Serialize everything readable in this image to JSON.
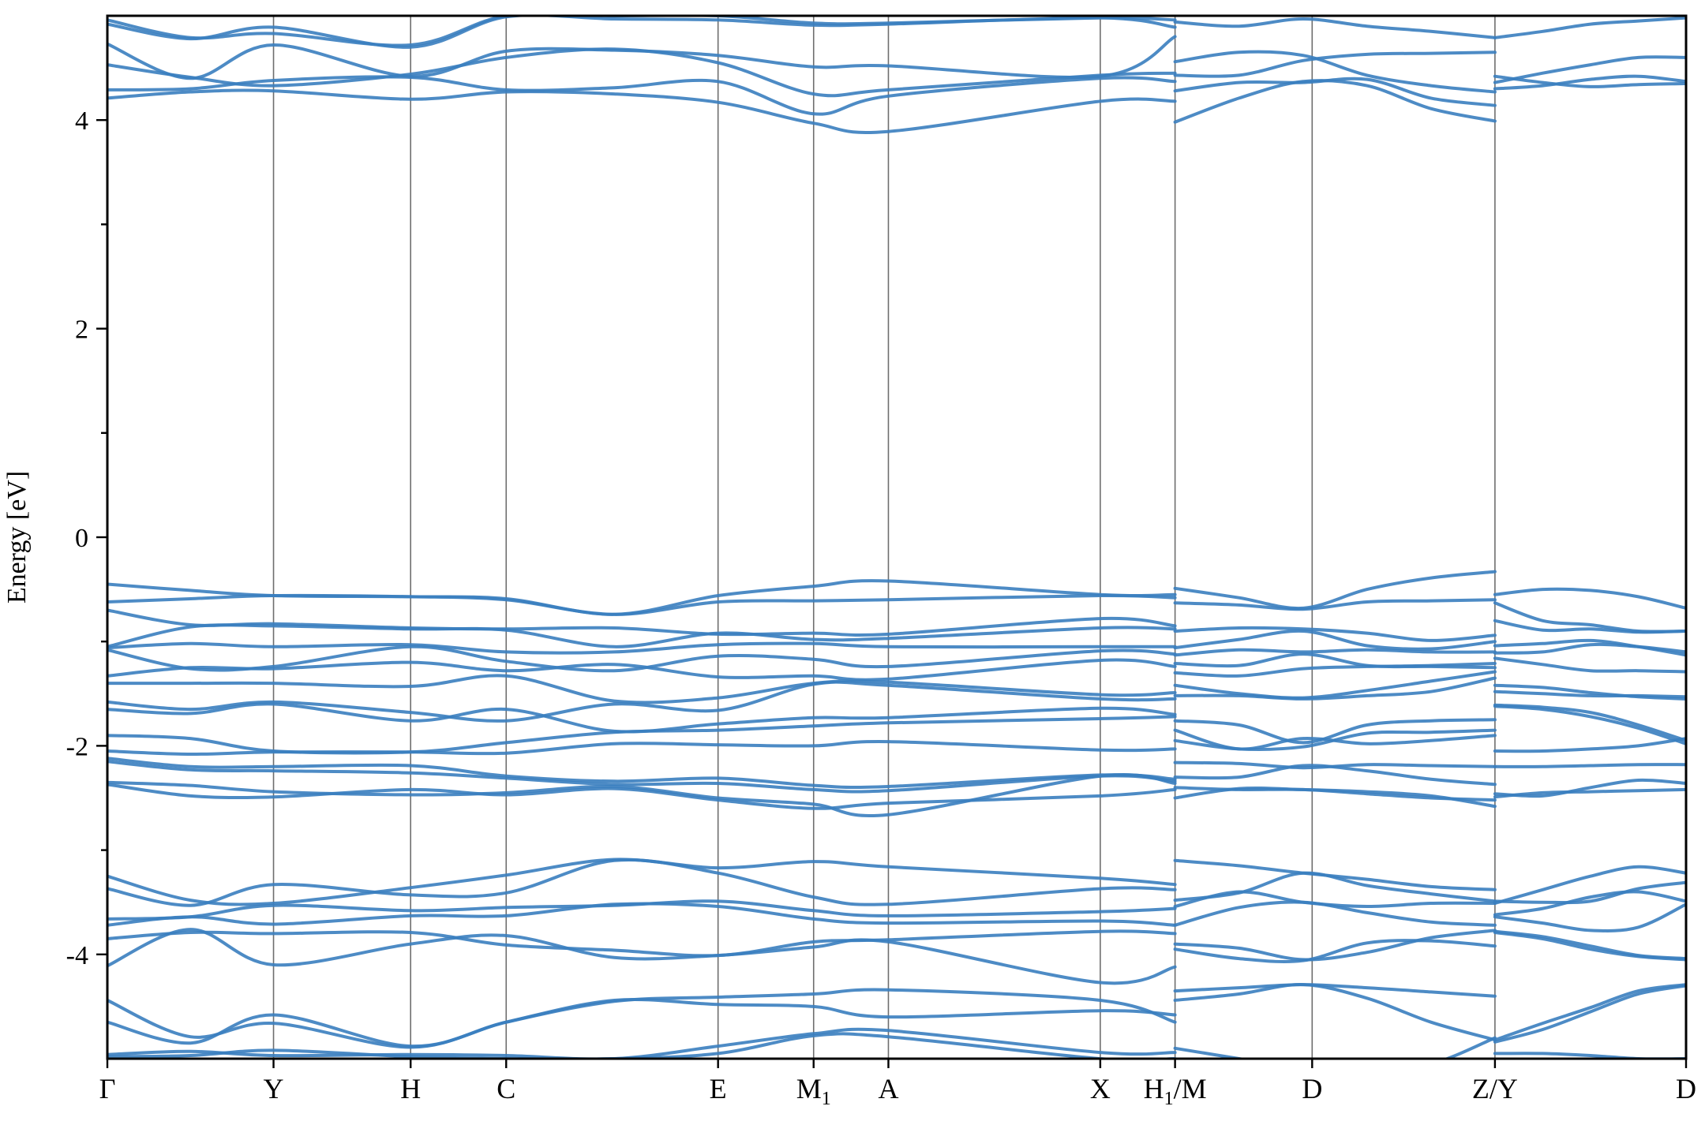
{
  "chart_data": {
    "type": "line",
    "title": "",
    "xlabel": "",
    "ylabel": "Energy [eV]",
    "ylim": [
      -5.0,
      5.0
    ],
    "ytick_values": [
      -4,
      -2,
      0,
      2,
      4
    ],
    "ytick_labels": [
      "-4",
      "-2",
      "0",
      "2",
      "4"
    ],
    "yminor_ticks": [
      -3,
      -1,
      1,
      3
    ],
    "grid": false,
    "legend": "none",
    "line_color": "#3a7ebf",
    "kpath_span": [
      0,
      19
    ],
    "kpoints": [
      {
        "label": "Γ",
        "sub": "",
        "suffix": "",
        "x": 0.0
      },
      {
        "label": "Y",
        "sub": "",
        "suffix": "",
        "x": 2.0
      },
      {
        "label": "H",
        "sub": "",
        "suffix": "",
        "x": 3.65
      },
      {
        "label": "C",
        "sub": "",
        "suffix": "",
        "x": 4.8
      },
      {
        "label": "E",
        "sub": "",
        "suffix": "",
        "x": 7.35
      },
      {
        "label": "M",
        "sub": "1",
        "suffix": "",
        "x": 8.5
      },
      {
        "label": "A",
        "sub": "",
        "suffix": "",
        "x": 9.4
      },
      {
        "label": "X",
        "sub": "",
        "suffix": "",
        "x": 11.95
      },
      {
        "label": "H",
        "sub": "1",
        "suffix": "/M",
        "x": 12.85
      },
      {
        "label": "D",
        "sub": "",
        "suffix": "",
        "x": 14.5
      },
      {
        "label": "Z/Y",
        "sub": "",
        "suffix": "",
        "x": 16.7
      },
      {
        "label": "D",
        "sub": "",
        "suffix": "",
        "x": 19.0
      }
    ],
    "segments_note_points": [
      0,
      2.0,
      3.65,
      4.8,
      7.35,
      8.5,
      9.4,
      11.95,
      12.85
    ],
    "series": [
      {
        "segment": 0,
        "values": [
          4.21,
          4.27,
          4.28,
          4.2,
          4.27,
          4.25,
          4.17,
          3.97,
          3.89,
          4.18,
          4.18
        ]
      },
      {
        "segment": 0,
        "values": [
          4.29,
          4.3,
          4.38,
          4.41,
          4.29,
          4.31,
          4.37,
          4.06,
          4.23,
          4.4,
          4.37
        ]
      },
      {
        "segment": 0,
        "values": [
          4.53,
          4.41,
          4.33,
          4.44,
          4.6,
          4.68,
          4.55,
          4.25,
          4.29,
          4.43,
          4.45
        ]
      },
      {
        "segment": 0,
        "values": [
          4.73,
          4.4,
          4.72,
          4.42,
          4.66,
          4.67,
          4.62,
          4.51,
          4.52,
          4.42,
          4.8
        ]
      },
      {
        "segment": 0,
        "values": [
          4.92,
          4.78,
          4.89,
          4.7,
          4.99,
          4.97,
          4.96,
          4.91,
          4.92,
          4.98,
          4.89
        ]
      },
      {
        "segment": 0,
        "values": [
          4.96,
          4.79,
          4.83,
          4.72,
          5.0,
          5.0,
          5.0,
          4.93,
          4.93,
          4.98,
          4.96
        ]
      },
      {
        "segment": 0,
        "values": [
          -0.45,
          -0.51,
          -0.56,
          -0.57,
          -0.59,
          -0.74,
          -0.56,
          -0.47,
          -0.42,
          -0.55,
          -0.55
        ]
      },
      {
        "segment": 0,
        "values": [
          -0.62,
          -0.59,
          -0.56,
          -0.57,
          -0.6,
          -0.74,
          -0.62,
          -0.61,
          -0.6,
          -0.56,
          -0.58
        ]
      },
      {
        "segment": 0,
        "values": [
          -0.7,
          -0.84,
          -0.83,
          -0.87,
          -0.88,
          -0.87,
          -0.93,
          -0.92,
          -0.93,
          -0.78,
          -0.85
        ]
      },
      {
        "segment": 0,
        "values": [
          -1.05,
          -0.86,
          -0.85,
          -0.88,
          -0.89,
          -1.05,
          -0.92,
          -0.98,
          -0.97,
          -0.87,
          -0.88
        ]
      },
      {
        "segment": 0,
        "values": [
          -1.06,
          -1.02,
          -1.05,
          -1.03,
          -1.1,
          -1.1,
          -1.03,
          -1.02,
          -1.05,
          -1.05,
          -1.05
        ]
      },
      {
        "segment": 0,
        "values": [
          -1.08,
          -1.26,
          -1.24,
          -1.05,
          -1.19,
          -1.28,
          -1.14,
          -1.17,
          -1.24,
          -1.09,
          -1.12
        ]
      },
      {
        "segment": 0,
        "values": [
          -1.33,
          -1.25,
          -1.26,
          -1.2,
          -1.28,
          -1.22,
          -1.34,
          -1.33,
          -1.36,
          -1.18,
          -1.24
        ]
      },
      {
        "segment": 0,
        "values": [
          -1.4,
          -1.4,
          -1.4,
          -1.43,
          -1.33,
          -1.57,
          -1.54,
          -1.4,
          -1.39,
          -1.51,
          -1.49
        ]
      },
      {
        "segment": 0,
        "values": [
          -1.58,
          -1.65,
          -1.58,
          -1.68,
          -1.76,
          -1.6,
          -1.66,
          -1.41,
          -1.42,
          -1.55,
          -1.55
        ]
      },
      {
        "segment": 0,
        "values": [
          -1.65,
          -1.69,
          -1.6,
          -1.76,
          -1.65,
          -1.86,
          -1.79,
          -1.73,
          -1.73,
          -1.64,
          -1.7
        ]
      },
      {
        "segment": 0,
        "values": [
          -1.9,
          -1.93,
          -2.05,
          -2.06,
          -1.97,
          -1.87,
          -1.85,
          -1.81,
          -1.78,
          -1.74,
          -1.72
        ]
      },
      {
        "segment": 0,
        "values": [
          -2.05,
          -2.08,
          -2.06,
          -2.06,
          -2.07,
          -1.98,
          -1.99,
          -2.0,
          -1.96,
          -2.04,
          -2.03
        ]
      },
      {
        "segment": 0,
        "values": [
          -2.12,
          -2.2,
          -2.2,
          -2.19,
          -2.29,
          -2.34,
          -2.31,
          -2.38,
          -2.39,
          -2.28,
          -2.32
        ]
      },
      {
        "segment": 0,
        "values": [
          -2.15,
          -2.23,
          -2.24,
          -2.26,
          -2.31,
          -2.37,
          -2.36,
          -2.42,
          -2.43,
          -2.29,
          -2.34
        ]
      },
      {
        "segment": 0,
        "values": [
          -2.35,
          -2.38,
          -2.44,
          -2.47,
          -2.45,
          -2.39,
          -2.5,
          -2.56,
          -2.66,
          -2.29,
          -2.36
        ]
      },
      {
        "segment": 0,
        "values": [
          -2.37,
          -2.48,
          -2.49,
          -2.42,
          -2.47,
          -2.41,
          -2.52,
          -2.6,
          -2.55,
          -2.48,
          -2.42
        ]
      },
      {
        "segment": 0,
        "values": [
          -3.25,
          -3.48,
          -3.51,
          -3.36,
          -3.24,
          -3.09,
          -3.17,
          -3.11,
          -3.16,
          -3.27,
          -3.33
        ]
      },
      {
        "segment": 0,
        "values": [
          -3.37,
          -3.53,
          -3.33,
          -3.43,
          -3.41,
          -3.1,
          -3.22,
          -3.45,
          -3.52,
          -3.37,
          -3.38
        ]
      },
      {
        "segment": 0,
        "values": [
          -3.66,
          -3.64,
          -3.53,
          -3.58,
          -3.55,
          -3.53,
          -3.49,
          -3.58,
          -3.63,
          -3.59,
          -3.56
        ]
      },
      {
        "segment": 0,
        "values": [
          -3.72,
          -3.64,
          -3.71,
          -3.63,
          -3.63,
          -3.52,
          -3.54,
          -3.66,
          -3.7,
          -3.68,
          -3.72
        ]
      },
      {
        "segment": 0,
        "values": [
          -3.85,
          -3.79,
          -3.8,
          -3.79,
          -3.91,
          -3.96,
          -4.01,
          -3.88,
          -3.86,
          -3.78,
          -3.8
        ]
      },
      {
        "segment": 0,
        "values": [
          -4.11,
          -3.76,
          -4.1,
          -3.9,
          -3.82,
          -4.03,
          -4.01,
          -3.93,
          -3.88,
          -4.27,
          -4.12
        ]
      },
      {
        "segment": 0,
        "values": [
          -4.44,
          -4.79,
          -4.66,
          -4.89,
          -4.65,
          -4.45,
          -4.41,
          -4.38,
          -4.34,
          -4.44,
          -4.65
        ]
      },
      {
        "segment": 0,
        "values": [
          -4.65,
          -4.85,
          -4.58,
          -4.88,
          -4.65,
          -4.44,
          -4.48,
          -4.5,
          -4.6,
          -4.54,
          -4.58
        ]
      },
      {
        "segment": 0,
        "values": [
          -4.96,
          -4.93,
          -4.97,
          -4.96,
          -4.97,
          -5.0,
          -4.88,
          -4.76,
          -4.73,
          -4.94,
          -4.94
        ]
      },
      {
        "segment": 0,
        "values": [
          -4.98,
          -4.97,
          -4.92,
          -4.98,
          -5.0,
          -5.0,
          -4.95,
          -4.78,
          -4.79,
          -5.0,
          -5.0
        ]
      },
      {
        "segment": 1,
        "values": [
          3.98,
          4.21,
          4.37,
          4.33,
          4.11,
          3.99
        ]
      },
      {
        "segment": 1,
        "values": [
          4.28,
          4.36,
          4.36,
          4.39,
          4.21,
          4.14
        ]
      },
      {
        "segment": 1,
        "values": [
          4.43,
          4.43,
          4.57,
          4.63,
          4.64,
          4.65
        ]
      },
      {
        "segment": 1,
        "values": [
          4.56,
          4.65,
          4.62,
          4.43,
          4.33,
          4.27
        ]
      },
      {
        "segment": 1,
        "values": [
          4.94,
          4.9,
          4.97,
          4.9,
          4.85,
          4.79
        ]
      },
      {
        "segment": 1,
        "values": [
          -0.49,
          -0.58,
          -0.68,
          -0.5,
          -0.39,
          -0.33
        ]
      },
      {
        "segment": 1,
        "values": [
          -0.63,
          -0.65,
          -0.69,
          -0.62,
          -0.61,
          -0.6
        ]
      },
      {
        "segment": 1,
        "values": [
          -0.9,
          -0.87,
          -0.88,
          -0.92,
          -0.99,
          -0.94
        ]
      },
      {
        "segment": 1,
        "values": [
          -1.06,
          -0.98,
          -0.9,
          -1.04,
          -1.07,
          -1.0
        ]
      },
      {
        "segment": 1,
        "values": [
          -1.13,
          -1.08,
          -1.1,
          -1.08,
          -1.1,
          -1.1
        ]
      },
      {
        "segment": 1,
        "values": [
          -1.21,
          -1.23,
          -1.12,
          -1.23,
          -1.24,
          -1.25
        ]
      },
      {
        "segment": 1,
        "values": [
          -1.3,
          -1.33,
          -1.26,
          -1.24,
          -1.23,
          -1.21
        ]
      },
      {
        "segment": 1,
        "values": [
          -1.42,
          -1.5,
          -1.54,
          -1.47,
          -1.38,
          -1.29
        ]
      },
      {
        "segment": 1,
        "values": [
          -1.52,
          -1.52,
          -1.55,
          -1.52,
          -1.48,
          -1.35
        ]
      },
      {
        "segment": 1,
        "values": [
          -1.76,
          -1.8,
          -1.97,
          -1.8,
          -1.76,
          -1.75
        ]
      },
      {
        "segment": 1,
        "values": [
          -1.85,
          -2.03,
          -1.93,
          -1.98,
          -1.95,
          -1.9
        ]
      },
      {
        "segment": 1,
        "values": [
          -1.95,
          -2.03,
          -2.01,
          -1.88,
          -1.87,
          -1.85
        ]
      },
      {
        "segment": 1,
        "values": [
          -2.16,
          -2.17,
          -2.21,
          -2.18,
          -2.19,
          -2.2
        ]
      },
      {
        "segment": 1,
        "values": [
          -2.3,
          -2.3,
          -2.19,
          -2.24,
          -2.32,
          -2.37
        ]
      },
      {
        "segment": 1,
        "values": [
          -2.4,
          -2.42,
          -2.42,
          -2.46,
          -2.5,
          -2.52
        ]
      },
      {
        "segment": 1,
        "values": [
          -2.5,
          -2.41,
          -2.42,
          -2.44,
          -2.48,
          -2.58
        ]
      },
      {
        "segment": 1,
        "values": [
          -3.1,
          -3.15,
          -3.22,
          -3.28,
          -3.35,
          -3.38
        ]
      },
      {
        "segment": 1,
        "values": [
          -3.48,
          -3.41,
          -3.22,
          -3.34,
          -3.42,
          -3.49
        ]
      },
      {
        "segment": 1,
        "values": [
          -3.54,
          -3.4,
          -3.5,
          -3.54,
          -3.51,
          -3.51
        ]
      },
      {
        "segment": 1,
        "values": [
          -3.72,
          -3.55,
          -3.5,
          -3.6,
          -3.69,
          -3.72
        ]
      },
      {
        "segment": 1,
        "values": [
          -3.9,
          -3.94,
          -4.05,
          -3.98,
          -3.84,
          -3.77
        ]
      },
      {
        "segment": 1,
        "values": [
          -3.95,
          -4.04,
          -4.06,
          -3.89,
          -3.87,
          -3.92
        ]
      },
      {
        "segment": 1,
        "values": [
          -4.35,
          -4.32,
          -4.29,
          -4.32,
          -4.36,
          -4.4
        ]
      },
      {
        "segment": 1,
        "values": [
          -4.44,
          -4.38,
          -4.29,
          -4.42,
          -4.65,
          -4.82
        ]
      },
      {
        "segment": 1,
        "values": [
          -4.9,
          -5.0,
          -5.1,
          -5.1,
          -5.05,
          -4.8
        ]
      },
      {
        "segment": 2,
        "values": [
          4.3,
          4.33,
          4.39,
          4.42,
          4.37
        ]
      },
      {
        "segment": 2,
        "values": [
          4.36,
          4.45,
          4.53,
          4.6,
          4.6
        ]
      },
      {
        "segment": 2,
        "values": [
          4.42,
          4.36,
          4.32,
          4.34,
          4.35
        ]
      },
      {
        "segment": 2,
        "values": [
          4.79,
          4.85,
          4.92,
          4.95,
          4.98
        ]
      },
      {
        "segment": 2,
        "values": [
          -0.55,
          -0.5,
          -0.51,
          -0.57,
          -0.68
        ]
      },
      {
        "segment": 2,
        "values": [
          -0.63,
          -0.8,
          -0.84,
          -0.9,
          -0.9
        ]
      },
      {
        "segment": 2,
        "values": [
          -0.8,
          -0.89,
          -0.88,
          -0.91,
          -0.9
        ]
      },
      {
        "segment": 2,
        "values": [
          -1.04,
          -1.02,
          -0.99,
          -1.05,
          -1.13
        ]
      },
      {
        "segment": 2,
        "values": [
          -1.11,
          -1.1,
          -1.03,
          -1.05,
          -1.1
        ]
      },
      {
        "segment": 2,
        "values": [
          -1.16,
          -1.22,
          -1.28,
          -1.28,
          -1.29
        ]
      },
      {
        "segment": 2,
        "values": [
          -1.42,
          -1.44,
          -1.49,
          -1.53,
          -1.55
        ]
      },
      {
        "segment": 2,
        "values": [
          -1.48,
          -1.5,
          -1.52,
          -1.52,
          -1.53
        ]
      },
      {
        "segment": 2,
        "values": [
          -1.61,
          -1.63,
          -1.68,
          -1.8,
          -1.95
        ]
      },
      {
        "segment": 2,
        "values": [
          -1.62,
          -1.65,
          -1.72,
          -1.83,
          -1.98
        ]
      },
      {
        "segment": 2,
        "values": [
          -2.05,
          -2.05,
          -2.03,
          -2.0,
          -1.93
        ]
      },
      {
        "segment": 2,
        "values": [
          -2.2,
          -2.2,
          -2.19,
          -2.18,
          -2.18
        ]
      },
      {
        "segment": 2,
        "values": [
          -2.46,
          -2.48,
          -2.4,
          -2.33,
          -2.36
        ]
      },
      {
        "segment": 2,
        "values": [
          -2.49,
          -2.45,
          -2.44,
          -2.43,
          -2.42
        ]
      },
      {
        "segment": 2,
        "values": [
          -3.51,
          -3.38,
          -3.25,
          -3.16,
          -3.22
        ]
      },
      {
        "segment": 2,
        "values": [
          -3.49,
          -3.5,
          -3.49,
          -3.37,
          -3.31
        ]
      },
      {
        "segment": 2,
        "values": [
          -3.62,
          -3.56,
          -3.45,
          -3.4,
          -3.49
        ]
      },
      {
        "segment": 2,
        "values": [
          -3.64,
          -3.7,
          -3.77,
          -3.74,
          -3.52
        ]
      },
      {
        "segment": 2,
        "values": [
          -3.78,
          -3.83,
          -3.92,
          -4.01,
          -4.04
        ]
      },
      {
        "segment": 2,
        "values": [
          -3.79,
          -3.85,
          -3.95,
          -4.02,
          -4.05
        ]
      },
      {
        "segment": 2,
        "values": [
          -4.82,
          -4.66,
          -4.51,
          -4.35,
          -4.29
        ]
      },
      {
        "segment": 2,
        "values": [
          -4.84,
          -4.72,
          -4.55,
          -4.38,
          -4.3
        ]
      },
      {
        "segment": 2,
        "values": [
          -4.95,
          -4.95,
          -4.97,
          -5.0,
          -5.0
        ]
      }
    ]
  }
}
